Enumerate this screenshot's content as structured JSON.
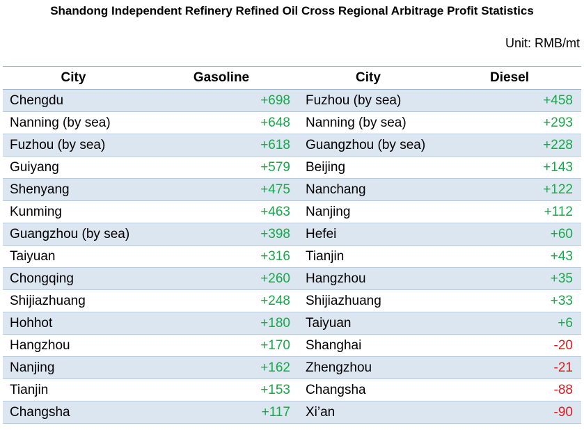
{
  "title": "Shandong Independent Refinery Refined Oil Cross Regional Arbitrage Profit Statistics",
  "unit": "Unit: RMB/mt",
  "headers": [
    "City",
    "Gasoline",
    "City",
    "Diesel"
  ],
  "colors": {
    "positive": "#1aa64a",
    "negative": "#e0191e",
    "stripe": "#dce6f1"
  },
  "rows": [
    {
      "gas_city": "Chengdu",
      "gas_value": "+698",
      "diesel_city": "Fuzhou (by sea)",
      "diesel_value": "+458"
    },
    {
      "gas_city": "Nanning (by sea)",
      "gas_value": "+648",
      "diesel_city": "Nanning (by sea)",
      "diesel_value": "+293"
    },
    {
      "gas_city": "Fuzhou (by sea)",
      "gas_value": "+618",
      "diesel_city": "Guangzhou (by sea)",
      "diesel_value": "+228"
    },
    {
      "gas_city": "Guiyang",
      "gas_value": "+579",
      "diesel_city": "Beijing",
      "diesel_value": "+143"
    },
    {
      "gas_city": "Shenyang",
      "gas_value": "+475",
      "diesel_city": "Nanchang",
      "diesel_value": "+122"
    },
    {
      "gas_city": "Kunming",
      "gas_value": "+463",
      "diesel_city": "Nanjing",
      "diesel_value": "+112"
    },
    {
      "gas_city": "Guangzhou (by sea)",
      "gas_value": "+398",
      "diesel_city": "Hefei",
      "diesel_value": "+60"
    },
    {
      "gas_city": "Taiyuan",
      "gas_value": "+316",
      "diesel_city": "Tianjin",
      "diesel_value": "+43"
    },
    {
      "gas_city": "Chongqing",
      "gas_value": "+260",
      "diesel_city": "Hangzhou",
      "diesel_value": "+35"
    },
    {
      "gas_city": "Shijiazhuang",
      "gas_value": "+248",
      "diesel_city": "Shijiazhuang",
      "diesel_value": "+33"
    },
    {
      "gas_city": "Hohhot",
      "gas_value": "+180",
      "diesel_city": "Taiyuan",
      "diesel_value": "+6"
    },
    {
      "gas_city": "Hangzhou",
      "gas_value": "+170",
      "diesel_city": "Shanghai",
      "diesel_value": "-20"
    },
    {
      "gas_city": "Nanjing",
      "gas_value": "+162",
      "diesel_city": "Zhengzhou",
      "diesel_value": "-21"
    },
    {
      "gas_city": "Tianjin",
      "gas_value": "+153",
      "diesel_city": "Changsha",
      "diesel_value": "-88"
    },
    {
      "gas_city": "Changsha",
      "gas_value": "+117",
      "diesel_city": "Xi’an",
      "diesel_value": "-90"
    }
  ]
}
